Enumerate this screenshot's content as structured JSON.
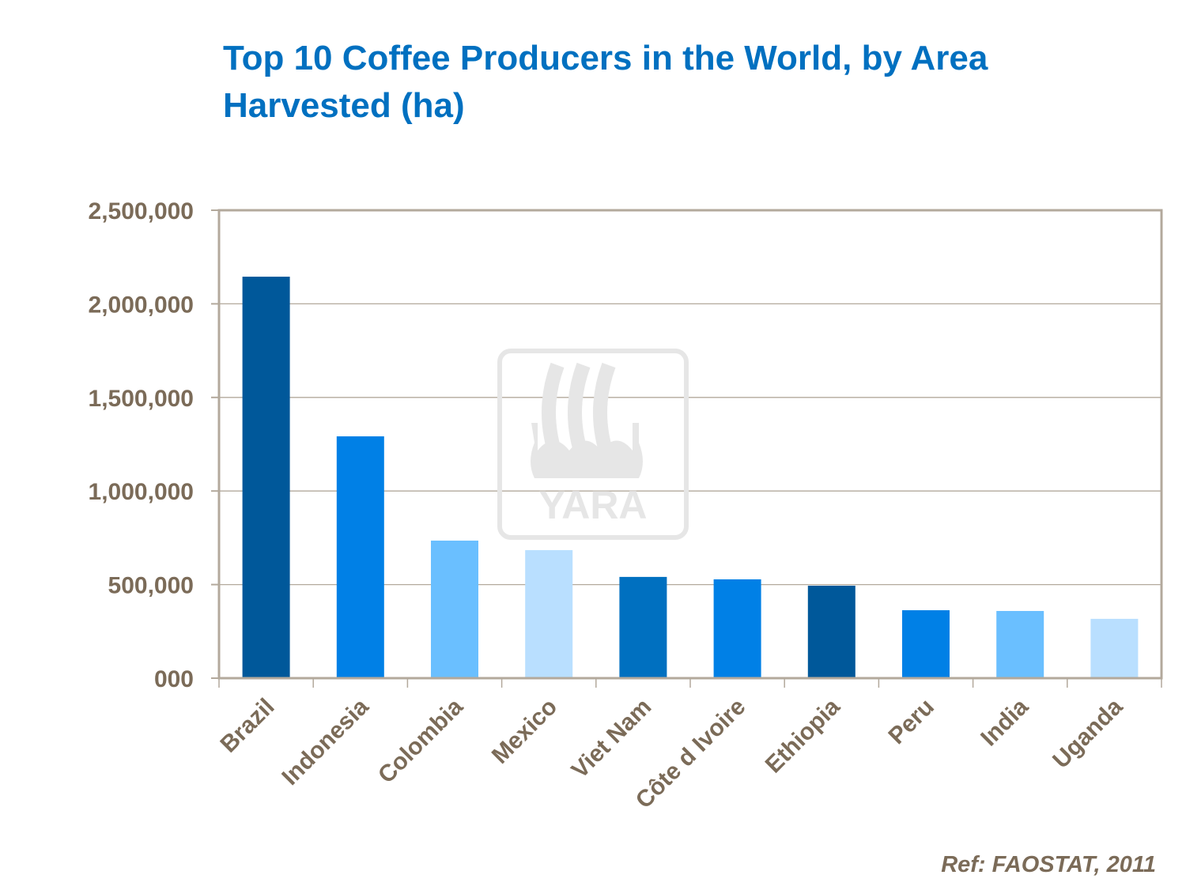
{
  "chart_data": {
    "type": "bar",
    "title": "Top 10 Coffee Producers in the World, by Area Harvested (ha)",
    "xlabel": "",
    "ylabel": "",
    "categories": [
      "Brazil",
      "Indonesia",
      "Colombia",
      "Mexico",
      "Viet Nam",
      "Côte d Ivoire",
      "Ethiopia",
      "Peru",
      "India",
      "Uganda"
    ],
    "values": [
      2145000,
      1292000,
      735000,
      684000,
      541000,
      528000,
      494000,
      363000,
      359000,
      317000
    ],
    "bar_colors": [
      "#00589a",
      "#0080e6",
      "#6abfff",
      "#b9dfff",
      "#0070c0",
      "#0080e6",
      "#00589a",
      "#0080e6",
      "#6abfff",
      "#b9dfff"
    ],
    "ylim": [
      0,
      2500000
    ],
    "yticks": [
      0,
      500000,
      1000000,
      1500000,
      2000000,
      2500000
    ],
    "ytick_labels": [
      "000",
      "500,000",
      "1,000,000",
      "1,500,000",
      "2,000,000",
      "2,500,000"
    ],
    "grid": true,
    "legend": "none",
    "watermark": "YARA",
    "source": "Ref: FAOSTAT, 2011"
  }
}
